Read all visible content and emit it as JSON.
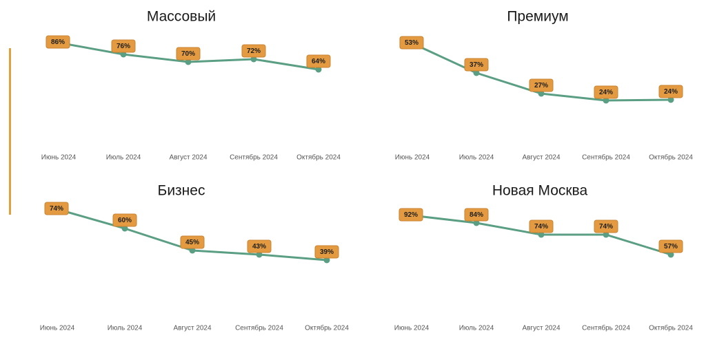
{
  "accent_color": "#E0A040",
  "line_color": "#5A9E84",
  "label_bg": "#E39A40",
  "label_border": "#C98331",
  "chart_data": [
    {
      "type": "line",
      "title": "Массовый",
      "categories": [
        "Июнь 2024",
        "Июль 2024",
        "Август 2024",
        "Сентябрь 2024",
        "Октябрь 2024"
      ],
      "values": [
        86,
        76,
        70,
        72,
        64
      ],
      "value_suffix": "%",
      "grid": false
    },
    {
      "type": "line",
      "title": "Премиум",
      "categories": [
        "Июнь 2024",
        "Июль 2024",
        "Август 2024",
        "Сентябрь 2024",
        "Октябрь 2024"
      ],
      "values": [
        53,
        37,
        27,
        24,
        24
      ],
      "value_suffix": "%",
      "grid": false
    },
    {
      "type": "line",
      "title": "Бизнес",
      "categories": [
        "Июнь 2024",
        "Июль 2024",
        "Август 2024",
        "Сентябрь 2024",
        "Октябрь 2024"
      ],
      "values": [
        74,
        60,
        45,
        43,
        39
      ],
      "value_suffix": "%",
      "grid": false
    },
    {
      "type": "line",
      "title": "Новая Москва",
      "categories": [
        "Июнь 2024",
        "Июль 2024",
        "Август 2024",
        "Сентябрь 2024",
        "Октябрь 2024"
      ],
      "values": [
        92,
        84,
        74,
        74,
        57
      ],
      "value_suffix": "%",
      "grid": false
    }
  ]
}
